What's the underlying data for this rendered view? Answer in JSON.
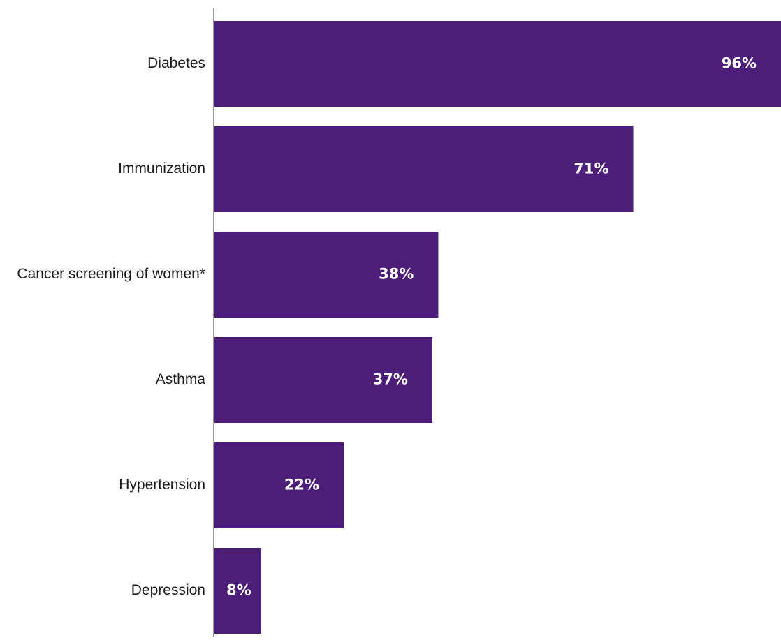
{
  "chart_data": {
    "type": "bar",
    "orientation": "horizontal",
    "categories": [
      "Diabetes",
      "Immunization",
      "Cancer screening of women*",
      "Asthma",
      "Hypertension",
      "Depression"
    ],
    "values": [
      96,
      71,
      38,
      37,
      22,
      8
    ],
    "value_labels": [
      "96%",
      "71%",
      "38%",
      "37%",
      "22%",
      "8%"
    ],
    "unit": "%",
    "xlim": [
      0,
      96
    ],
    "grid": false,
    "legend": "none",
    "bar_color": "#4c1e7a",
    "axis_color": "#9a9a9a",
    "label_color": "#ffffff"
  }
}
